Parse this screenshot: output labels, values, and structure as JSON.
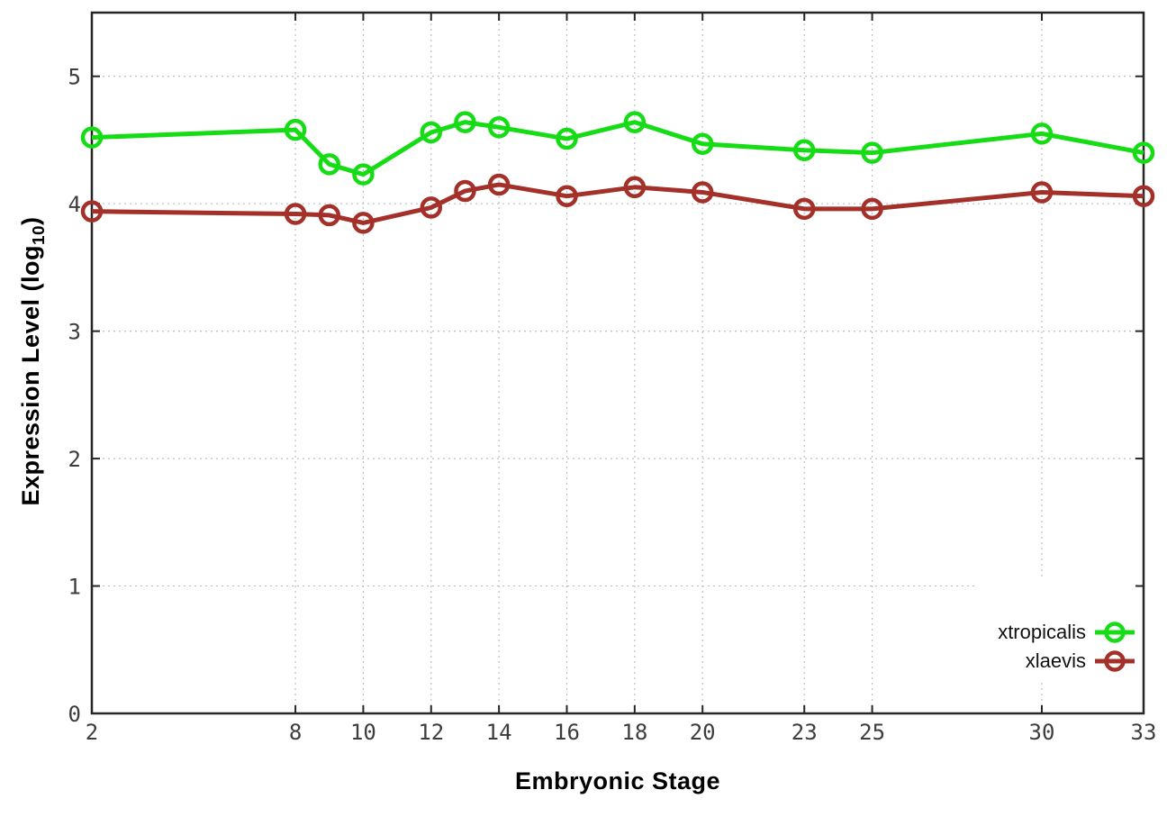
{
  "chart_data": {
    "type": "line",
    "title": "",
    "xlabel": "Embryonic Stage",
    "ylabel": {
      "text": "Expression Level (log",
      "subscript": "10",
      "suffix": ")"
    },
    "x": [
      2,
      8,
      9,
      10,
      12,
      13,
      14,
      16,
      18,
      20,
      23,
      25,
      30,
      33
    ],
    "xticks": [
      2,
      8,
      10,
      12,
      14,
      16,
      18,
      20,
      23,
      25,
      30,
      33
    ],
    "yticks": [
      0,
      1,
      2,
      3,
      4,
      5
    ],
    "xlim": [
      2,
      33
    ],
    "ylim": [
      0,
      5.5
    ],
    "grid": true,
    "legend_position": "bottom-right",
    "series": [
      {
        "name": "xtropicalis",
        "color": "#16dc16",
        "values": [
          4.52,
          4.58,
          4.31,
          4.23,
          4.56,
          4.64,
          4.6,
          4.51,
          4.64,
          4.47,
          4.42,
          4.4,
          4.55,
          4.4
        ]
      },
      {
        "name": "xlaevis",
        "color": "#a33029",
        "values": [
          3.94,
          3.92,
          3.91,
          3.85,
          3.97,
          4.1,
          4.15,
          4.06,
          4.13,
          4.09,
          3.96,
          3.96,
          4.09,
          4.06
        ]
      }
    ],
    "colors": {
      "border": "#262626",
      "grid": "#b9c0cc",
      "tick_text": "#3d3d3d"
    }
  }
}
